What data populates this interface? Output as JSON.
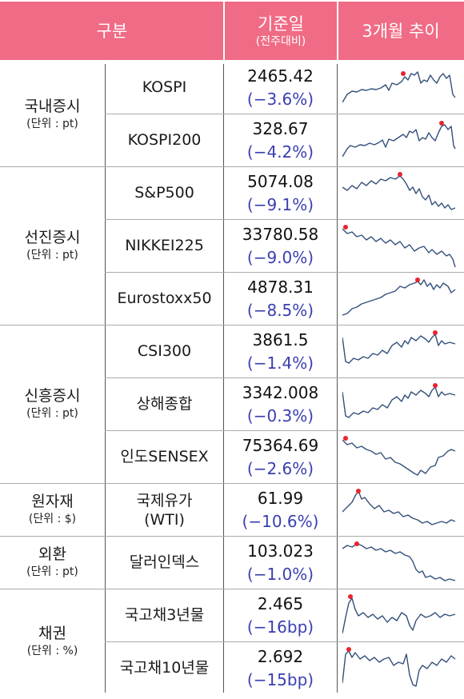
{
  "header": {
    "category_label": "구분",
    "base_date_label": "기준일",
    "base_date_sub": "(전주대비)",
    "trend_label": "3개월 추이"
  },
  "groups": [
    {
      "name": "국내증시",
      "unit": "(단위 : pt)"
    },
    {
      "name": "선진증시",
      "unit": "(단위 : pt)"
    },
    {
      "name": "신흥증시",
      "unit": "(단위 : pt)"
    },
    {
      "name": "원자재",
      "unit": "(단위 : $)"
    },
    {
      "name": "외환",
      "unit": "(단위 : pt)"
    },
    {
      "name": "채권",
      "unit": "(단위 : %)"
    }
  ],
  "rows": [
    {
      "name": "KOSPI",
      "value": "2465.42",
      "change": "(−3.6%)"
    },
    {
      "name": "KOSPI200",
      "value": "328.67",
      "change": "(−4.2%)"
    },
    {
      "name": "S&P500",
      "value": "5074.08",
      "change": "(−9.1%)"
    },
    {
      "name": "NIKKEI225",
      "value": "33780.58",
      "change": "(−9.0%)"
    },
    {
      "name": "Eurostoxx50",
      "value": "4878.31",
      "change": "(−8.5%)"
    },
    {
      "name": "CSI300",
      "value": "3861.5",
      "change": "(−1.4%)"
    },
    {
      "name": "상해종합",
      "value": "3342.008",
      "change": "(−0.3%)"
    },
    {
      "name": "인도SENSEX",
      "value": "75364.69",
      "change": "(−2.6%)"
    },
    {
      "name": "국제유가",
      "name2": "(WTI)",
      "value": "61.99",
      "change": "(−10.6%)"
    },
    {
      "name": "달러인덱스",
      "value": "103.023",
      "change": "(−1.0%)"
    },
    {
      "name": "국고채3년물",
      "value": "2.465",
      "change": "(−16bp)"
    },
    {
      "name": "국고채10년물",
      "value": "2.692",
      "change": "(−15bp)"
    }
  ],
  "colors": {
    "header_bg": "#f06b85",
    "change_text": "#3a3fb0",
    "sparkline": "#34507a",
    "peak_marker": "#e8232f"
  }
}
